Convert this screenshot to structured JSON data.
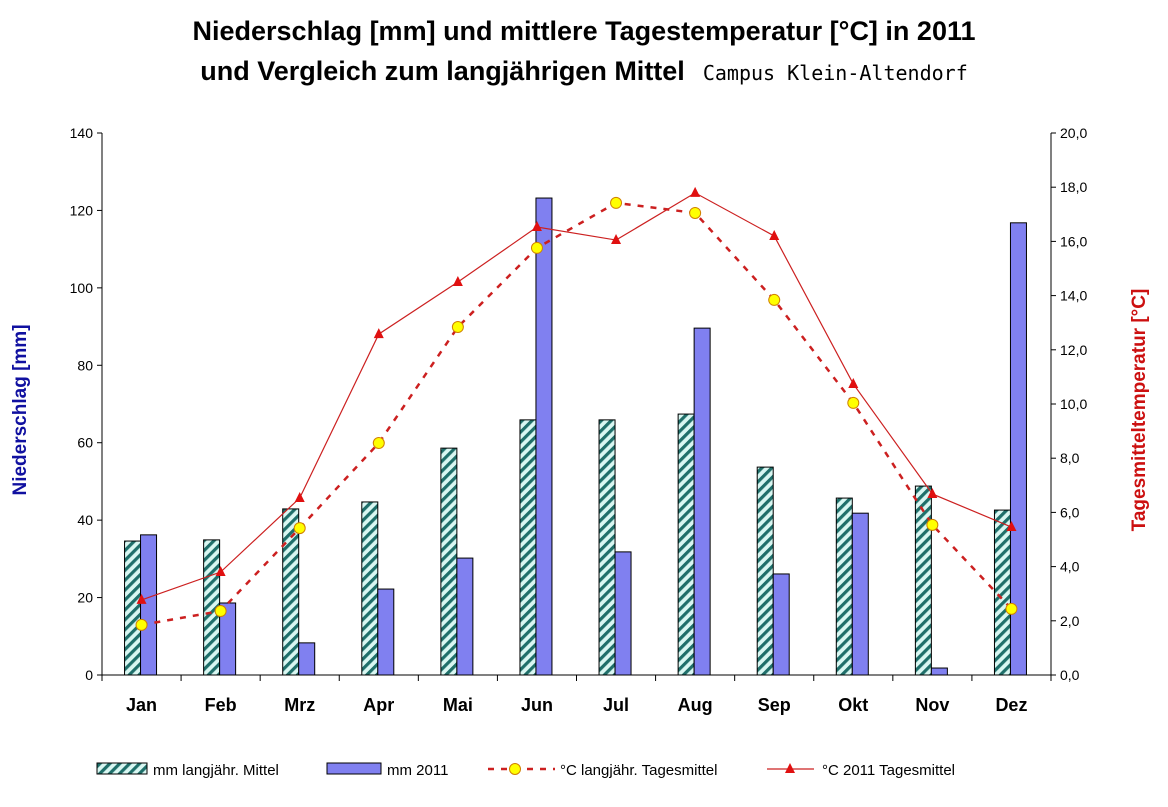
{
  "chart_data": {
    "type": "bar",
    "title": "Niederschlag [mm] und mittlere Tagestemperatur [°C] in 2011",
    "title_line2": "und Vergleich zum langjährigen Mittel",
    "subtitle": "Campus Klein-Altendorf",
    "categories": [
      "Jan",
      "Feb",
      "Mrz",
      "Apr",
      "Mai",
      "Jun",
      "Jul",
      "Aug",
      "Sep",
      "Okt",
      "Nov",
      "Dez"
    ],
    "ylabel": "Niederschlag [mm]",
    "y2label": "Tagesmitteltemperatur [°C]",
    "ylim": [
      0,
      140
    ],
    "y2lim": [
      0,
      20
    ],
    "yticks": [
      "0",
      "20",
      "40",
      "60",
      "80",
      "100",
      "120",
      "140"
    ],
    "y2ticks": [
      "0,0",
      "2,0",
      "4,0",
      "6,0",
      "8,0",
      "10,0",
      "12,0",
      "14,0",
      "16,0",
      "18,0",
      "20,0"
    ],
    "grid": false,
    "legend_position": "bottom",
    "series": [
      {
        "name": "mm langjähr. Mittel",
        "type": "bar",
        "axis": "left",
        "color": "#1f6f6a",
        "fill": "#d9f7f2",
        "pattern": "hatch",
        "values": [
          34.6,
          34.9,
          42.9,
          44.7,
          58.6,
          65.9,
          65.9,
          67.4,
          53.7,
          45.7,
          48.8,
          42.6
        ]
      },
      {
        "name": "mm 2011",
        "type": "bar",
        "axis": "left",
        "color": "#8080f0",
        "values": [
          36.2,
          18.6,
          8.3,
          22.2,
          30.2,
          123.2,
          31.8,
          89.6,
          26.1,
          41.8,
          1.8,
          116.8
        ]
      },
      {
        "name": "°C langjähr. Tagesmittel",
        "type": "line",
        "axis": "right",
        "color": "#cc2020",
        "marker": "circle",
        "marker_color": "#ffff00",
        "dashed": true,
        "values": [
          1.85,
          2.36,
          5.42,
          8.56,
          12.84,
          15.76,
          17.42,
          17.05,
          13.84,
          10.04,
          5.54,
          2.44
        ]
      },
      {
        "name": "°C 2011 Tagesmittel",
        "type": "line",
        "axis": "right",
        "color": "#cc2020",
        "marker": "triangle",
        "values": [
          2.77,
          3.8,
          6.53,
          12.58,
          14.5,
          16.53,
          16.05,
          17.79,
          16.2,
          10.74,
          6.68,
          5.46
        ]
      }
    ]
  }
}
